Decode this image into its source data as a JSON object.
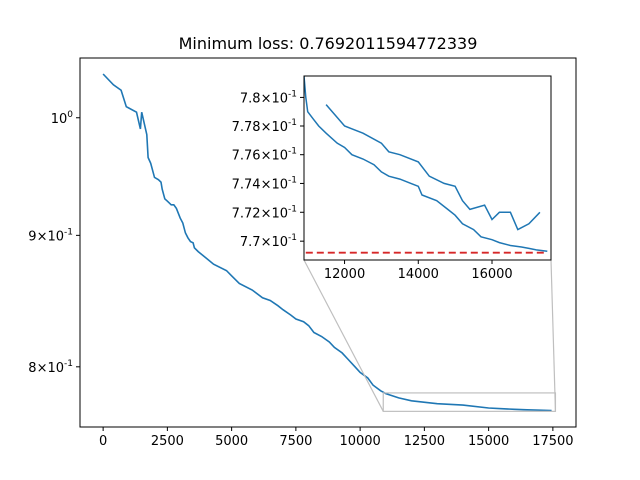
{
  "chart_data": [
    {
      "type": "line",
      "title": "Minimum loss: 0.7692011594772339",
      "xlabel": "",
      "ylabel": "",
      "xscale": "linear",
      "yscale": "log",
      "xlim": [
        -900,
        18400
      ],
      "ylim": [
        0.758,
        1.055
      ],
      "xticks": [
        0,
        2500,
        5000,
        7500,
        10000,
        12500,
        15000,
        17500
      ],
      "xtick_labels": [
        "0",
        "2500",
        "5000",
        "7500",
        "10000",
        "12500",
        "15000",
        "17500"
      ],
      "yticks": [
        1.0,
        0.9,
        0.8
      ],
      "ytick_labels": [
        "10^0",
        "9×10^-1",
        "8×10^-1"
      ],
      "grid": false,
      "legend": "none",
      "series": [
        {
          "color": "#1f77b4",
          "x": [
            0,
            400,
            700,
            900,
            1300,
            1450,
            1500,
            1700,
            1750,
            1850,
            2000,
            2150,
            2250,
            2300,
            2400,
            2500,
            2650,
            2750,
            2850,
            3000,
            3100,
            3200,
            3300,
            3400,
            3500,
            3550,
            3700,
            4000,
            4300,
            4800,
            5000,
            5300,
            5800,
            6200,
            6500,
            6800,
            7000,
            7300,
            7500,
            7800,
            8000,
            8200,
            8500,
            8800,
            9000,
            9300,
            9500,
            9800,
            10000,
            10300,
            10500,
            10800,
            11000,
            11500,
            12000,
            13000,
            14000,
            15000,
            15500,
            16000,
            16500,
            17000,
            17450
          ],
          "values": [
            1.04,
            1.03,
            1.025,
            1.01,
            1.005,
            0.99,
            1.005,
            0.985,
            0.965,
            0.96,
            0.948,
            0.946,
            0.944,
            0.938,
            0.93,
            0.928,
            0.925,
            0.925,
            0.922,
            0.914,
            0.91,
            0.902,
            0.898,
            0.895,
            0.894,
            0.89,
            0.887,
            0.882,
            0.877,
            0.872,
            0.868,
            0.862,
            0.857,
            0.851,
            0.849,
            0.845,
            0.842,
            0.838,
            0.835,
            0.833,
            0.83,
            0.825,
            0.822,
            0.818,
            0.814,
            0.81,
            0.806,
            0.8,
            0.796,
            0.792,
            0.787,
            0.783,
            0.781,
            0.778,
            0.776,
            0.774,
            0.773,
            0.771,
            0.7705,
            0.7701,
            0.7698,
            0.7695,
            0.7693
          ]
        }
      ]
    },
    {
      "type": "line",
      "title": "",
      "xlabel": "",
      "ylabel": "",
      "xscale": "linear",
      "yscale": "log",
      "xlim": [
        10900,
        17600
      ],
      "ylim": [
        0.7687,
        0.7815
      ],
      "xticks": [
        12000,
        14000,
        16000
      ],
      "xtick_labels": [
        "12000",
        "14000",
        "16000"
      ],
      "yticks": [
        0.78,
        0.778,
        0.776,
        0.774,
        0.772,
        0.77
      ],
      "ytick_labels": [
        "7.8×10^-1",
        "7.78×10^-1",
        "7.76×10^-1",
        "7.74×10^-1",
        "7.72×10^-1",
        "7.7×10^-1"
      ],
      "grid": false,
      "legend": "none",
      "series": [
        {
          "color": "#1f77b4",
          "x": [
            10900,
            10950,
            11000,
            11150,
            11300,
            11500,
            11800,
            12000,
            12200,
            12500,
            12800,
            13000,
            13200,
            13500,
            13800,
            14000,
            14100,
            14500,
            14800,
            15000,
            15200,
            15500,
            15700,
            16000,
            16200,
            16500,
            16800,
            17000,
            17200,
            17500
          ],
          "values": [
            0.7815,
            0.78,
            0.779,
            0.7785,
            0.778,
            0.7775,
            0.7768,
            0.7765,
            0.776,
            0.7757,
            0.7753,
            0.7748,
            0.7745,
            0.7743,
            0.774,
            0.7738,
            0.7732,
            0.7728,
            0.7722,
            0.7718,
            0.7712,
            0.7708,
            0.7703,
            0.7701,
            0.7699,
            0.7697,
            0.7696,
            0.7695,
            0.7694,
            0.7693
          ]
        },
        {
          "color": "#1f77b4",
          "x": [
            11500,
            12000,
            12500,
            13000,
            13200,
            13500,
            14000,
            14300,
            14700,
            15000,
            15200,
            15400,
            15800,
            16000,
            16200,
            16500,
            16700,
            17000,
            17300
          ],
          "values": [
            0.7795,
            0.778,
            0.7775,
            0.7768,
            0.7762,
            0.776,
            0.7755,
            0.7745,
            0.774,
            0.7738,
            0.7728,
            0.7722,
            0.7725,
            0.7715,
            0.772,
            0.772,
            0.7708,
            0.7712,
            0.772
          ]
        },
        {
          "color": "#d62728",
          "x": [
            10950,
            17450
          ],
          "values": [
            0.7692011594772339,
            0.7692011594772339
          ]
        }
      ]
    }
  ]
}
